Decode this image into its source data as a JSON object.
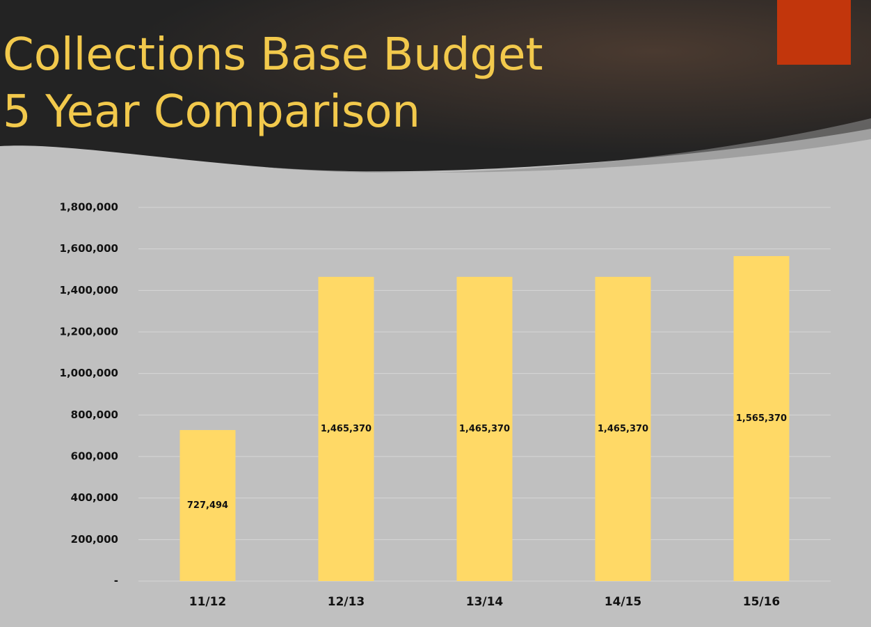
{
  "chart_data": {
    "type": "bar",
    "title": "Collections Base Budget\n5 Year Comparison",
    "categories": [
      "11/12",
      "12/13",
      "13/14",
      "14/15",
      "15/16"
    ],
    "values": [
      727494,
      1465370,
      1465370,
      1465370,
      1565370
    ],
    "value_labels": [
      "727,494",
      "1,465,370",
      "1,465,370",
      "1,465,370",
      "1,565,370"
    ],
    "color": "#ffd966",
    "ylim": [
      0,
      1800000
    ],
    "yticks": [
      {
        "value": 0,
        "label": "-"
      },
      {
        "value": 200000,
        "label": "200,000"
      },
      {
        "value": 400000,
        "label": "400,000"
      },
      {
        "value": 600000,
        "label": "600,000"
      },
      {
        "value": 800000,
        "label": "800,000"
      },
      {
        "value": 1000000,
        "label": "1,000,000"
      },
      {
        "value": 1200000,
        "label": "1,200,000"
      },
      {
        "value": 1400000,
        "label": "1,400,000"
      },
      {
        "value": 1600000,
        "label": "1,600,000"
      },
      {
        "value": 1800000,
        "label": "1,800,000"
      }
    ],
    "grid": true
  }
}
